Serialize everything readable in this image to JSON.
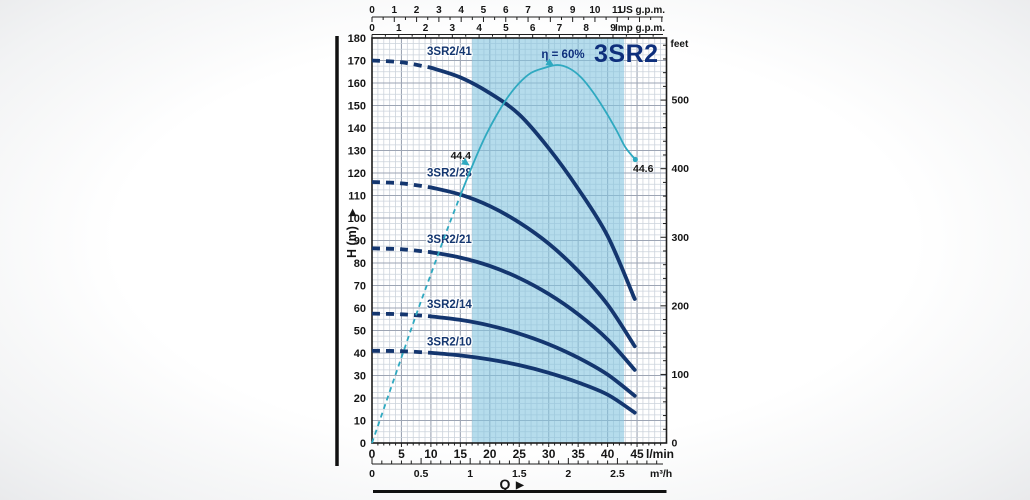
{
  "title": "3SR2",
  "colors": {
    "head_curve": "#14366f",
    "efficiency_curve": "#2fa9c0",
    "operating_band": "#b5dcec",
    "title_navy": "#0e2f7c",
    "axis_text": "#151515",
    "grid_minor": "#ccd3dc",
    "grid_major": "#9da5b4",
    "frame": "#1c1c1c"
  },
  "chart_data": {
    "type": "line",
    "title": "3SR2",
    "x_axes": {
      "lmin": {
        "unit": "l/min",
        "ticks": [
          0,
          5,
          10,
          15,
          20,
          25,
          30,
          35,
          40,
          45
        ],
        "max": 50
      },
      "m3h": {
        "unit": "m³/h",
        "ticks": [
          0,
          0.5,
          1,
          1.5,
          2,
          2.5
        ],
        "minor_step": 0.1,
        "lmin_per_unit": 16.667
      },
      "us_gpm": {
        "unit": "US g.p.m.",
        "ticks": [
          0,
          1,
          2,
          3,
          4,
          5,
          6,
          7,
          8,
          9,
          10,
          11
        ],
        "minor_step": 0.5,
        "lmin_per_unit": 3.785
      },
      "imp_gpm": {
        "unit": "Imp g.p.m.",
        "ticks": [
          0,
          1,
          2,
          3,
          4,
          5,
          6,
          7,
          8,
          9
        ],
        "minor_step": 0.5,
        "lmin_per_unit": 4.546
      }
    },
    "y_axes": {
      "h_m": {
        "label": "H (m)",
        "arrow": "▶",
        "min": 0,
        "max": 180,
        "tick_step": 10
      },
      "feet": {
        "unit": "feet",
        "ticks": [
          0,
          100,
          200,
          300,
          400,
          500
        ],
        "minor_step": 20,
        "m_per_unit": 0.3048
      }
    },
    "q_label": "Q",
    "q_arrow": "▶",
    "operating_band_lmin": [
      17,
      42.8
    ],
    "series": [
      {
        "name": "3SR2/41",
        "dash_until_lmin": 10,
        "points_lmin_m": [
          [
            0,
            170
          ],
          [
            5,
            169.2
          ],
          [
            10,
            166.8
          ],
          [
            15,
            162.5
          ],
          [
            20,
            155.5
          ],
          [
            25,
            146
          ],
          [
            30,
            131
          ],
          [
            35,
            113
          ],
          [
            40,
            92
          ],
          [
            44.6,
            64
          ]
        ]
      },
      {
        "name": "3SR2/28",
        "dash_until_lmin": 10,
        "points_lmin_m": [
          [
            0,
            116
          ],
          [
            5,
            115.4
          ],
          [
            10,
            113.6
          ],
          [
            15,
            110.4
          ],
          [
            20,
            105.3
          ],
          [
            25,
            98
          ],
          [
            30,
            88.6
          ],
          [
            35,
            76.5
          ],
          [
            40,
            61.5
          ],
          [
            44.6,
            43
          ]
        ]
      },
      {
        "name": "3SR2/21",
        "dash_until_lmin": 10,
        "points_lmin_m": [
          [
            0,
            86.5
          ],
          [
            5,
            86.1
          ],
          [
            10,
            84.8
          ],
          [
            15,
            82.4
          ],
          [
            20,
            78.7
          ],
          [
            25,
            73.3
          ],
          [
            30,
            66.2
          ],
          [
            35,
            57.2
          ],
          [
            40,
            46
          ],
          [
            44.6,
            32.5
          ]
        ]
      },
      {
        "name": "3SR2/14",
        "dash_until_lmin": 10,
        "points_lmin_m": [
          [
            0,
            57.5
          ],
          [
            5,
            57.2
          ],
          [
            10,
            56.3
          ],
          [
            15,
            54.7
          ],
          [
            20,
            52.2
          ],
          [
            25,
            48.6
          ],
          [
            30,
            43.9
          ],
          [
            35,
            37.9
          ],
          [
            40,
            30.4
          ],
          [
            44.6,
            21
          ]
        ]
      },
      {
        "name": "3SR2/10",
        "dash_until_lmin": 10,
        "points_lmin_m": [
          [
            0,
            41
          ],
          [
            5,
            40.8
          ],
          [
            10,
            40.1
          ],
          [
            15,
            38.9
          ],
          [
            20,
            37.1
          ],
          [
            25,
            34.6
          ],
          [
            30,
            31.2
          ],
          [
            35,
            26.9
          ],
          [
            40,
            21.5
          ],
          [
            44.6,
            13.5
          ]
        ]
      }
    ],
    "efficiency_curve": {
      "dashed_points": [
        [
          0,
          0
        ],
        [
          2.5,
          19
        ],
        [
          5,
          38
        ],
        [
          7.5,
          57
        ],
        [
          10,
          75
        ],
        [
          12.5,
          93
        ],
        [
          15,
          110
        ]
      ],
      "solid_points": [
        [
          15,
          110
        ],
        [
          17,
          123
        ],
        [
          19,
          135
        ],
        [
          21,
          145
        ],
        [
          23,
          153.5
        ],
        [
          25,
          160
        ],
        [
          27,
          164.5
        ],
        [
          29,
          166.5
        ],
        [
          31.5,
          168
        ],
        [
          33.5,
          166.5
        ],
        [
          35.5,
          162.5
        ],
        [
          37.5,
          156
        ],
        [
          39.5,
          148
        ],
        [
          41.5,
          139
        ],
        [
          43,
          131.5
        ],
        [
          44.7,
          126
        ]
      ],
      "peak_label": "η = 60%",
      "start_value_label": "44.4",
      "end_value_label": "44.6"
    }
  }
}
